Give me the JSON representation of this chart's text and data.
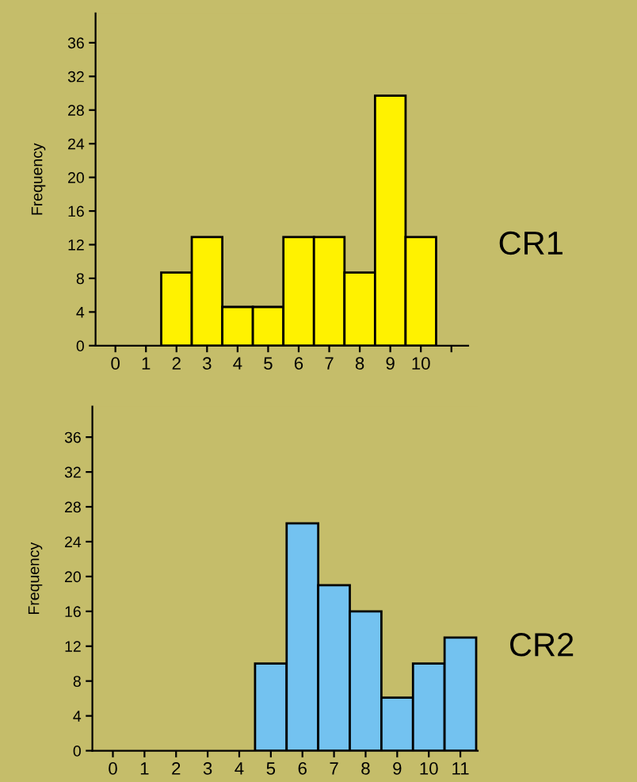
{
  "chart_data": [
    {
      "type": "bar",
      "ylabel": "Frequency",
      "categories": [
        "0",
        "1",
        "2",
        "3",
        "4",
        "5",
        "6",
        "7",
        "8",
        "9",
        "10",
        null
      ],
      "series": [
        {
          "color": "#fff200",
          "values": [
            0,
            0,
            8.7,
            12.9,
            4.6,
            4.6,
            12.9,
            12.9,
            8.7,
            29.7,
            12.9,
            null
          ]
        }
      ],
      "ylim": [
        0,
        39.5
      ],
      "yticks": [
        0,
        4,
        8,
        12,
        16,
        20,
        24,
        28,
        32,
        36
      ],
      "grid": false,
      "legend": false,
      "annotations": [
        "CR1"
      ]
    },
    {
      "type": "bar",
      "ylabel": "Frequency",
      "categories": [
        "0",
        "1",
        "2",
        "3",
        "4",
        "5",
        "6",
        "7",
        "8",
        "9",
        "10",
        "11"
      ],
      "series": [
        {
          "color": "#73c2f0",
          "values": [
            0,
            0,
            0,
            0,
            0,
            10,
            26.1,
            19,
            16,
            6.1,
            10,
            13
          ]
        }
      ],
      "ylim": [
        0,
        39.5
      ],
      "yticks": [
        0,
        4,
        8,
        12,
        16,
        20,
        24,
        28,
        32,
        36
      ],
      "grid": false,
      "legend": false,
      "annotations": [
        "CR2"
      ]
    }
  ]
}
